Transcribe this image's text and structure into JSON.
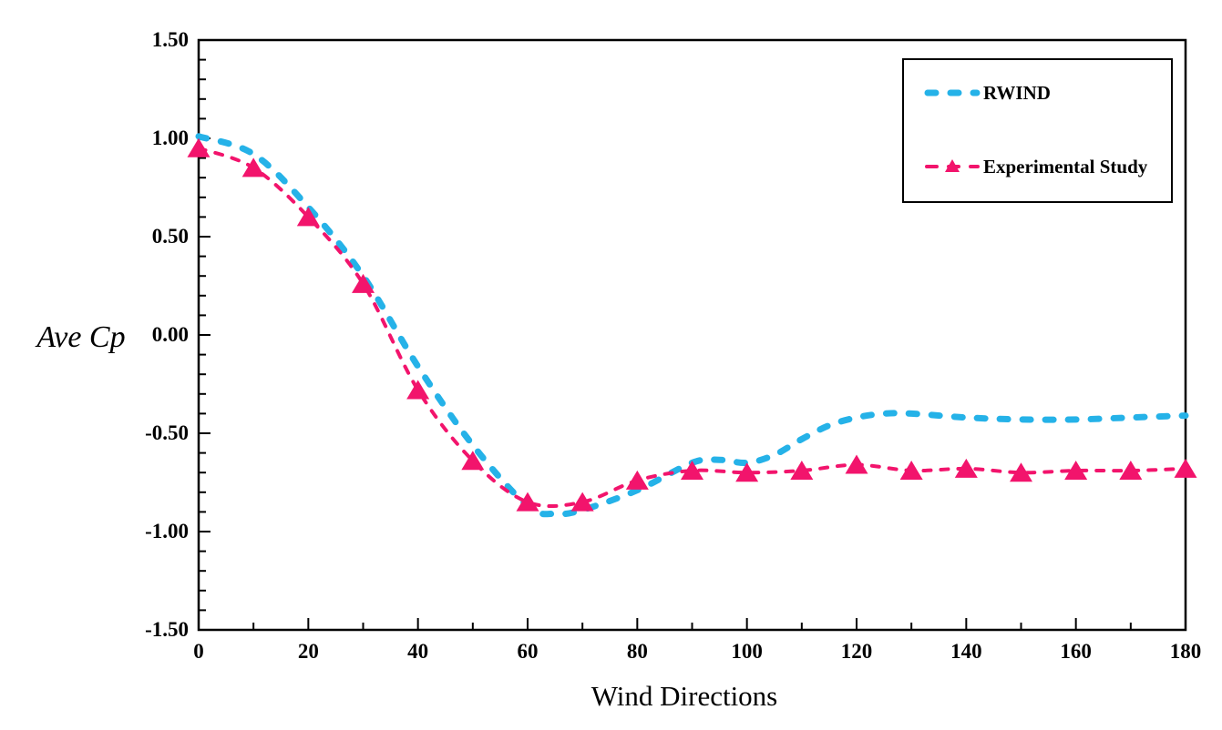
{
  "figure": {
    "background": "#ffffff",
    "axis_color": "#000000",
    "text_color": "#000000"
  },
  "chart_data": {
    "type": "line",
    "title": "",
    "xlabel": "Wind Directions",
    "ylabel": "Ave Cp",
    "xlim": [
      0,
      180
    ],
    "ylim": [
      -1.5,
      1.5
    ],
    "x_major_step": 20,
    "x_minor_step": 10,
    "y_major_step": 0.5,
    "y_minor_step": 0.1,
    "x_tick_labels": [
      "0",
      "20",
      "40",
      "60",
      "80",
      "100",
      "120",
      "140",
      "160",
      "180"
    ],
    "y_tick_labels": [
      "1.50",
      "1.00",
      "0.50",
      "0.00",
      "-0.50",
      "-1.00",
      "-1.50"
    ],
    "grid": false,
    "legend_position": "top-right",
    "axis_color": "#000000",
    "series": [
      {
        "name": "RWIND",
        "color": "#25B2E8",
        "style": "dashed",
        "marker": "none",
        "points": [
          [
            0,
            1.01
          ],
          [
            10,
            0.92
          ],
          [
            20,
            0.65
          ],
          [
            30,
            0.3
          ],
          [
            40,
            -0.16
          ],
          [
            50,
            -0.56
          ],
          [
            60,
            -0.87
          ],
          [
            65,
            -0.91
          ],
          [
            70,
            -0.89
          ],
          [
            80,
            -0.79
          ],
          [
            90,
            -0.65
          ],
          [
            95,
            -0.635
          ],
          [
            100,
            -0.65
          ],
          [
            105,
            -0.61
          ],
          [
            110,
            -0.53
          ],
          [
            115,
            -0.46
          ],
          [
            120,
            -0.42
          ],
          [
            125,
            -0.4
          ],
          [
            130,
            -0.4
          ],
          [
            140,
            -0.42
          ],
          [
            150,
            -0.43
          ],
          [
            160,
            -0.43
          ],
          [
            170,
            -0.42
          ],
          [
            180,
            -0.41
          ]
        ]
      },
      {
        "name": "Experimental Study",
        "color": "#F2146C",
        "style": "dashed",
        "marker": "triangle",
        "points": [
          [
            0,
            0.95
          ],
          [
            10,
            0.85
          ],
          [
            20,
            0.6
          ],
          [
            30,
            0.26
          ],
          [
            40,
            -0.28
          ],
          [
            50,
            -0.64
          ],
          [
            60,
            -0.85
          ],
          [
            70,
            -0.85
          ],
          [
            80,
            -0.74
          ],
          [
            90,
            -0.69
          ],
          [
            100,
            -0.7
          ],
          [
            110,
            -0.69
          ],
          [
            120,
            -0.66
          ],
          [
            130,
            -0.69
          ],
          [
            140,
            -0.68
          ],
          [
            150,
            -0.7
          ],
          [
            160,
            -0.69
          ],
          [
            170,
            -0.69
          ],
          [
            180,
            -0.68
          ]
        ]
      }
    ]
  }
}
